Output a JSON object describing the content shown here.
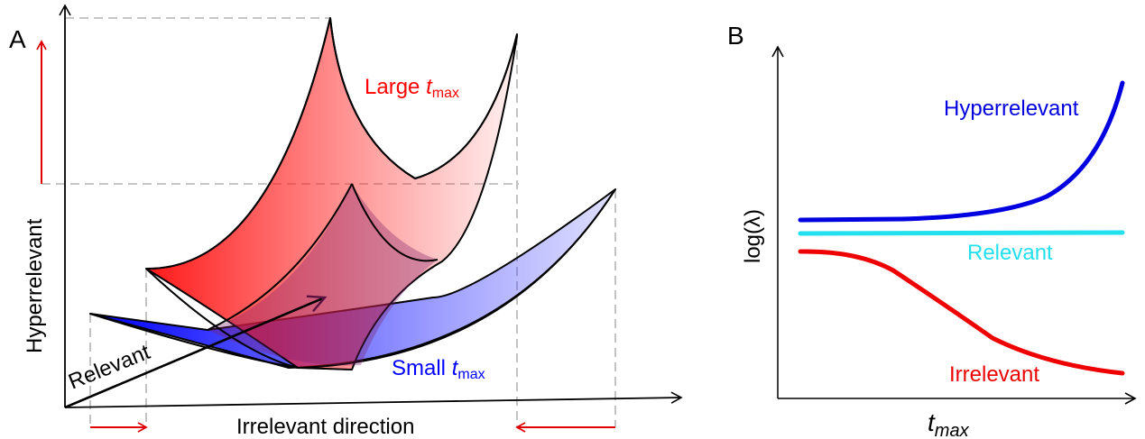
{
  "panel_a": {
    "letter": "A",
    "axis_vertical_label": "Hyperrelevant",
    "axis_horizontal_label": "Irrelevant direction",
    "axis_depth_label": "Relevant",
    "large_label": {
      "prefix": "Large ",
      "var": "t",
      "sub": "max"
    },
    "small_label": {
      "prefix": "Small ",
      "var": "t",
      "sub": "max"
    },
    "colors": {
      "large": "#ff0000",
      "small": "#0000ff",
      "arrow": "#e00000"
    }
  },
  "panel_b": {
    "letter": "B",
    "ylabel": "log(λ)",
    "xlabel": {
      "var": "t",
      "sub": "max"
    },
    "curves": [
      {
        "name": "Hyperrelevant",
        "color": "#0000e0"
      },
      {
        "name": "Relevant",
        "color": "#22e0ee"
      },
      {
        "name": "Irrelevant",
        "color": "#ee0000"
      }
    ]
  }
}
